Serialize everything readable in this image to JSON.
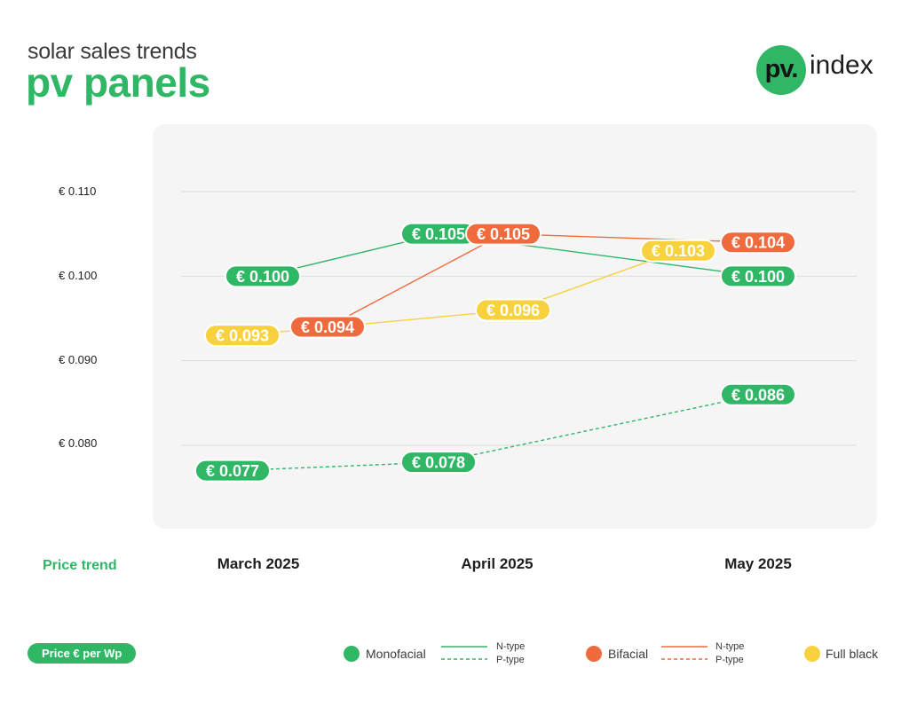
{
  "header": {
    "subtitle": "solar sales trends",
    "title": "pv panels",
    "logo_mark": "pv.",
    "logo_text": "index"
  },
  "colors": {
    "monofacial": "#2fb766",
    "bifacial": "#ef6a3c",
    "full_black": "#f7d23e",
    "gridline": "#dcdcdc",
    "plot_background": "#f5f5f5"
  },
  "row_label": "Price trend",
  "unit_badge": "Price € per Wp",
  "chart_data": {
    "type": "line",
    "categories": [
      "March 2025",
      "April 2025",
      "May 2025"
    ],
    "ylim": [
      0.072,
      0.1135
    ],
    "yticks": [
      {
        "value": 0.11,
        "label": "€ 0.110"
      },
      {
        "value": 0.1,
        "label": "€ 0.100"
      },
      {
        "value": 0.09,
        "label": "€ 0.090"
      },
      {
        "value": 0.08,
        "label": "€ 0.080"
      }
    ],
    "grid": true,
    "series": [
      {
        "key": "mono_n",
        "panel": "Monofacial",
        "cell": "N-type",
        "color": "#2fb766",
        "dashed": false,
        "values": [
          0.1,
          0.105,
          0.1
        ],
        "labels": [
          "€ 0.100",
          "€ 0.105",
          "€ 0.100"
        ]
      },
      {
        "key": "mono_p",
        "panel": "Monofacial",
        "cell": "P-type",
        "color": "#2fb766",
        "dashed": true,
        "values": [
          0.077,
          0.078,
          0.086
        ],
        "labels": [
          "€ 0.077",
          "€ 0.078",
          "€ 0.086"
        ]
      },
      {
        "key": "bi_n",
        "panel": "Bifacial",
        "cell": "N-type",
        "color": "#ef6a3c",
        "dashed": false,
        "values": [
          0.094,
          0.105,
          0.104
        ],
        "labels": [
          "€ 0.094",
          "€ 0.105",
          "€ 0.104"
        ]
      },
      {
        "key": "fullblack",
        "panel": "Full black",
        "cell": "",
        "color": "#f7d23e",
        "dashed": false,
        "values": [
          0.093,
          0.096,
          0.103
        ],
        "labels": [
          "€ 0.093",
          "€ 0.096",
          "€ 0.103"
        ]
      }
    ]
  },
  "legend": {
    "monofacial": {
      "label": "Monofacial",
      "n_type": "N-type",
      "p_type": "P-type"
    },
    "bifacial": {
      "label": "Bifacial",
      "n_type": "N-type",
      "p_type": "P-type"
    },
    "full_black": {
      "label": "Full black"
    }
  }
}
